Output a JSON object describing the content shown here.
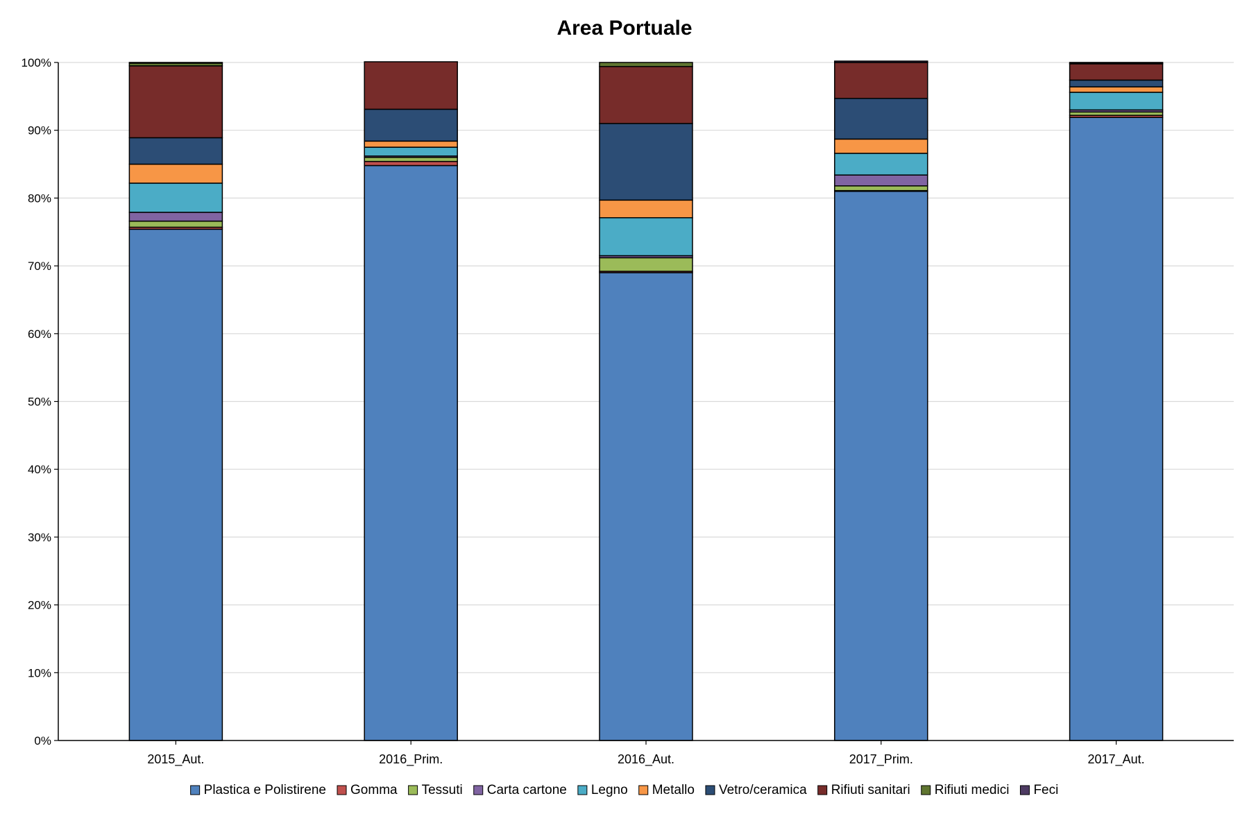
{
  "chart_data": {
    "type": "bar",
    "stacked": true,
    "title": "Area Portuale",
    "xlabel": "",
    "ylabel": "",
    "ylim": [
      0,
      100
    ],
    "y_ticks": [
      0,
      10,
      20,
      30,
      40,
      50,
      60,
      70,
      80,
      90,
      100
    ],
    "y_tick_labels": [
      "0%",
      "10%",
      "20%",
      "30%",
      "40%",
      "50%",
      "60%",
      "70%",
      "80%",
      "90%",
      "100%"
    ],
    "grid": true,
    "legend_position": "bottom",
    "categories": [
      "2015_Aut.",
      "2016_Prim.",
      "2016_Aut.",
      "2017_Prim.",
      "2017_Aut."
    ],
    "series": [
      {
        "name": "Plastica e Polistirene",
        "color": "#4F81BD",
        "values": [
          75.4,
          84.8,
          69.0,
          81.0,
          91.9
        ]
      },
      {
        "name": "Gomma",
        "color": "#C0504D",
        "values": [
          0.3,
          0.6,
          0.2,
          0.1,
          0.3
        ]
      },
      {
        "name": "Tessuti",
        "color": "#9BBB59",
        "values": [
          0.9,
          0.6,
          2.0,
          0.7,
          0.5
        ]
      },
      {
        "name": "Carta cartone",
        "color": "#8064A2",
        "values": [
          1.3,
          0.2,
          0.3,
          1.6,
          0.3
        ]
      },
      {
        "name": "Legno",
        "color": "#4BACC6",
        "values": [
          4.3,
          1.3,
          5.6,
          3.2,
          2.6
        ]
      },
      {
        "name": "Metallo",
        "color": "#F79646",
        "values": [
          2.8,
          0.9,
          2.6,
          2.1,
          0.8
        ]
      },
      {
        "name": "Vetro/ceramica",
        "color": "#2C4D75",
        "values": [
          3.9,
          4.7,
          11.3,
          6.0,
          1.0
        ]
      },
      {
        "name": "Rifiuti sanitari",
        "color": "#772C2A",
        "values": [
          10.6,
          7.0,
          8.4,
          5.3,
          2.4
        ]
      },
      {
        "name": "Rifiuti medici",
        "color": "#5F7530",
        "values": [
          0.4,
          0.0,
          0.6,
          0.0,
          0.1
        ]
      },
      {
        "name": "Feci",
        "color": "#4D3B62",
        "values": [
          0.1,
          0.0,
          0.0,
          0.2,
          0.1
        ]
      }
    ]
  }
}
